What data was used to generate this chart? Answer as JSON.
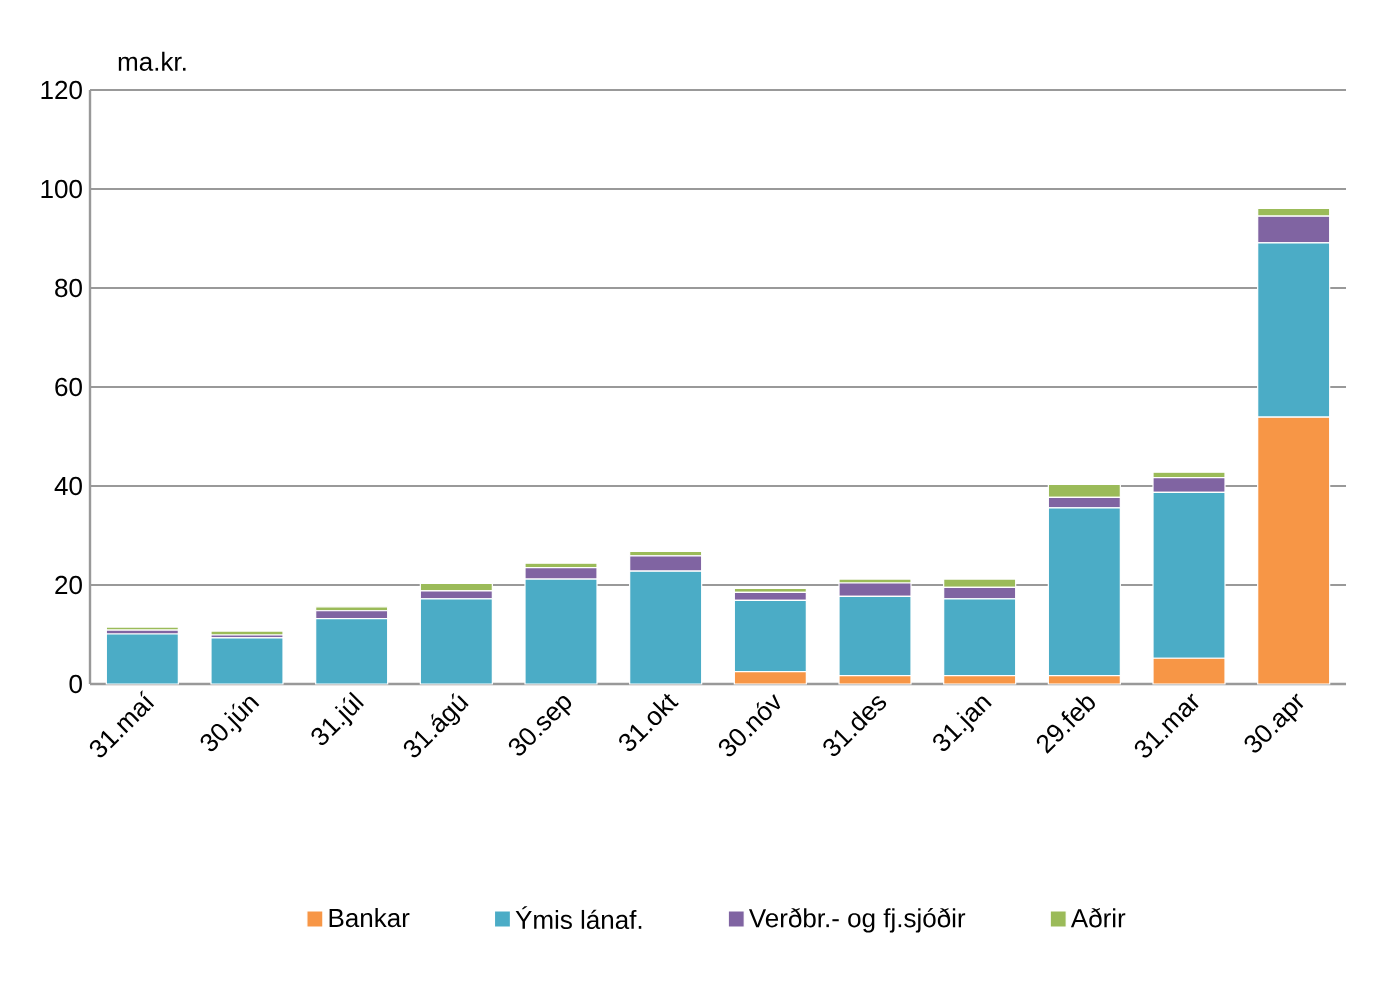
{
  "chart_data": {
    "type": "bar",
    "stacked": true,
    "ylabel": "ma.kr.",
    "categories": [
      "31.maí",
      "30.jún",
      "31.júl",
      "31.ágú",
      "30.sep",
      "31.okt",
      "30.nóv",
      "31.des",
      "31.jan",
      "29.feb",
      "31.mar",
      "30.apr"
    ],
    "series": [
      {
        "name": "Bankar",
        "color": "#f79646",
        "values": [
          0,
          0,
          0,
          0,
          0,
          0,
          2.5,
          1.7,
          1.7,
          1.7,
          5.2,
          53.9
        ]
      },
      {
        "name": "Ýmis lánaf.",
        "color": "#4bacc6",
        "values": [
          10.1,
          9.3,
          13.2,
          17.2,
          21.2,
          22.8,
          14.4,
          16,
          15.5,
          33.9,
          33.5,
          35.2
        ]
      },
      {
        "name": "Verðbr.- og fj.sjóðir",
        "color": "#8064a2",
        "values": [
          0.8,
          0.6,
          1.6,
          1.6,
          2.3,
          3.1,
          1.6,
          2.7,
          2.3,
          2.1,
          3,
          5.4
        ]
      },
      {
        "name": "Aðrir",
        "color": "#9bbb59",
        "values": [
          0.6,
          0.8,
          0.8,
          1.5,
          0.9,
          0.9,
          0.8,
          0.8,
          1.7,
          2.6,
          1.1,
          1.6
        ]
      }
    ],
    "ylim": [
      0,
      120
    ],
    "yticks": [
      0,
      20,
      40,
      60,
      80,
      100,
      120
    ],
    "grid": "y",
    "legend": "bottom"
  }
}
